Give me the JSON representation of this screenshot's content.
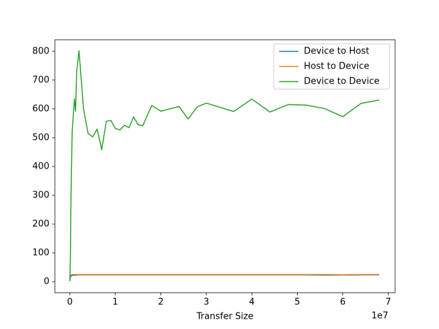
{
  "chart_data": {
    "type": "line",
    "x_label": "Transfer Size",
    "x_scale_label": "1e7",
    "x": [
      0,
      100000,
      250000,
      500000,
      1000000,
      1250000,
      1500000,
      2000000,
      3000000,
      4000000,
      5000000,
      6000000,
      7000000,
      8000000,
      9000000,
      10000000,
      11000000,
      12000000,
      13000000,
      14000000,
      15000000,
      16000000,
      18000000,
      20000000,
      24000000,
      26000000,
      28000000,
      30000000,
      36000000,
      40000000,
      44000000,
      48000000,
      52000000,
      56000000,
      60000000,
      64000000,
      68000000
    ],
    "series": [
      {
        "name": "Device to Host",
        "color": "#1f77b4",
        "values": [
          5,
          15,
          20,
          22,
          23,
          22,
          24,
          24,
          24,
          24,
          24,
          24,
          24,
          24,
          24,
          24,
          24,
          24,
          24,
          24,
          24,
          24,
          24,
          24,
          24,
          24,
          24,
          24,
          24,
          24,
          24,
          24,
          24,
          23,
          23,
          24,
          24
        ]
      },
      {
        "name": "Host to Device",
        "color": "#ff7f0e",
        "values": [
          20,
          23,
          24,
          25,
          25,
          25,
          25,
          25,
          25,
          25,
          25,
          25,
          25,
          25,
          25,
          25,
          25,
          25,
          25,
          25,
          25,
          25,
          25,
          25,
          25,
          25,
          25,
          25,
          25,
          25,
          25,
          25,
          25,
          25,
          24,
          25,
          25
        ]
      },
      {
        "name": "Device to Device",
        "color": "#2ca02c",
        "values": [
          2,
          80,
          300,
          520,
          635,
          592,
          730,
          802,
          600,
          515,
          503,
          530,
          458,
          557,
          560,
          532,
          527,
          543,
          535,
          572,
          545,
          541,
          612,
          592,
          608,
          565,
          607,
          620,
          591,
          634,
          589,
          615,
          613,
          601,
          573,
          619,
          631
        ]
      }
    ],
    "xlim": [
      -3300000,
      71500000
    ],
    "xticks": [
      {
        "value": 0,
        "label": "0"
      },
      {
        "value": 10000000,
        "label": "1"
      },
      {
        "value": 20000000,
        "label": "2"
      },
      {
        "value": 30000000,
        "label": "3"
      },
      {
        "value": 40000000,
        "label": "4"
      },
      {
        "value": 50000000,
        "label": "5"
      },
      {
        "value": 60000000,
        "label": "6"
      },
      {
        "value": 70000000,
        "label": "7"
      }
    ],
    "ylim": [
      -38,
      840
    ],
    "yticks": [
      0,
      100,
      200,
      300,
      400,
      500,
      600,
      700,
      800
    ],
    "grid": false,
    "legend": "upper-right"
  }
}
